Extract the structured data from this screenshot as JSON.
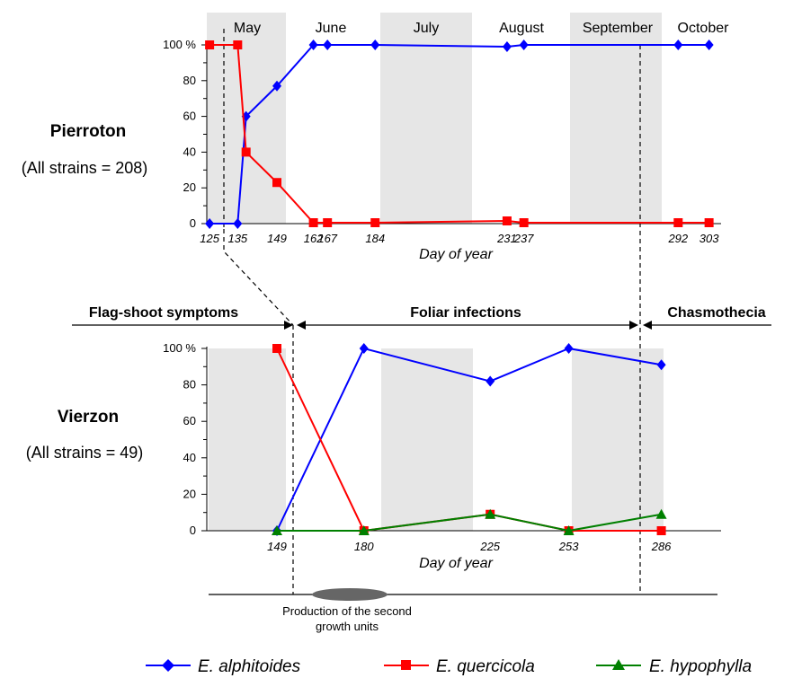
{
  "chart_data": [
    {
      "type": "line",
      "site": "Pierroton",
      "strains_label": "(All strains = 208)",
      "xlabel": "Day of year",
      "ylabel": "",
      "xlim": [
        124,
        306
      ],
      "ylim": [
        0,
        100
      ],
      "y_ticks": [
        0,
        20,
        40,
        60,
        80,
        100
      ],
      "y_tick_labels": [
        "0",
        "20",
        "40",
        "60",
        "80",
        "100 %"
      ],
      "x_ticks": [
        125,
        135,
        149,
        162,
        167,
        184,
        231,
        237,
        292,
        303
      ],
      "months": [
        "May",
        "June",
        "July",
        "August",
        "September",
        "October"
      ],
      "shaded_months": [
        "May",
        "July",
        "September"
      ],
      "series": [
        {
          "name": "E. alphitoides",
          "color": "#0000ff",
          "marker": "diamond",
          "x": [
            125,
            135,
            138,
            149,
            162,
            167,
            184,
            231,
            237,
            292,
            303
          ],
          "y": [
            0,
            0,
            60,
            77,
            100,
            100,
            100,
            99,
            100,
            100,
            100
          ]
        },
        {
          "name": "E. quercicola",
          "color": "#ff0000",
          "marker": "square",
          "x": [
            125,
            135,
            138,
            149,
            162,
            167,
            184,
            231,
            237,
            292,
            303
          ],
          "y": [
            100,
            100,
            40,
            23,
            0.5,
            0.5,
            0.5,
            1.5,
            0.5,
            0.5,
            0.5
          ]
        }
      ]
    },
    {
      "type": "line",
      "site": "Vierzon",
      "strains_label": "(All strains = 49)",
      "xlabel": "Day of year",
      "ylabel": "",
      "xlim": [
        124,
        306
      ],
      "ylim": [
        0,
        100
      ],
      "y_ticks": [
        0,
        20,
        40,
        60,
        80,
        100
      ],
      "y_tick_labels": [
        "0",
        "20",
        "40",
        "60",
        "80",
        "100 %"
      ],
      "x_ticks": [
        149,
        180,
        225,
        253,
        286
      ],
      "series": [
        {
          "name": "E. alphitoides",
          "color": "#0000ff",
          "marker": "diamond",
          "x": [
            149,
            180,
            225,
            253,
            286
          ],
          "y": [
            0,
            100,
            82,
            100,
            91
          ]
        },
        {
          "name": "E. quercicola",
          "color": "#ff0000",
          "marker": "square",
          "x": [
            149,
            180,
            225,
            253,
            286
          ],
          "y": [
            100,
            0,
            9,
            0,
            0
          ]
        },
        {
          "name": "E. hypophylla",
          "color": "#008000",
          "marker": "triangle",
          "x": [
            149,
            180,
            225,
            253,
            286
          ],
          "y": [
            0,
            0,
            9,
            0,
            9
          ]
        }
      ]
    }
  ],
  "phases": {
    "flag_shoot": "Flag-shoot symptoms",
    "foliar": "Foliar infections",
    "chasmothecia": "Chasmothecia"
  },
  "growth_note_line1": "Production of the second",
  "growth_note_line2": "growth units",
  "legend": [
    "E. alphitoides",
    "E. quercicola",
    "E. hypophylla"
  ]
}
